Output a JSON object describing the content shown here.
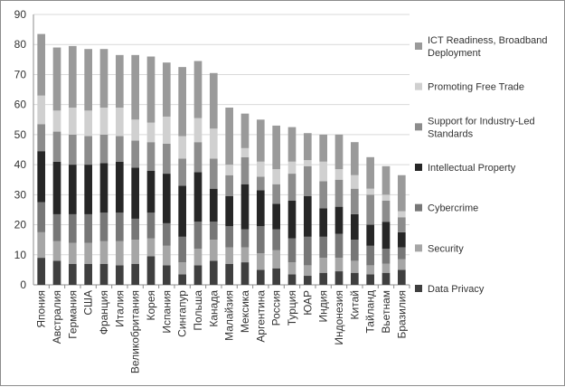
{
  "chart_data": {
    "type": "bar",
    "stacked": true,
    "title": "",
    "xlabel": "",
    "ylabel": "",
    "ylim": [
      0,
      90
    ],
    "y_ticks": [
      0,
      10,
      20,
      30,
      40,
      50,
      60,
      70,
      80,
      90
    ],
    "grid": "horizontal",
    "legend_position": "right",
    "categories": [
      "Япония",
      "Австралия",
      "Германия",
      "США",
      "Франция",
      "Италия",
      "Великобритания",
      "Корея",
      "Испания",
      "Сингапур",
      "Польша",
      "Канада",
      "Малайзия",
      "Мексика",
      "Аргентина",
      "Россия",
      "Турция",
      "ЮАР",
      "Индия",
      "Индонезия",
      "Китай",
      "Тайланд",
      "Вьетнам",
      "Бразилия"
    ],
    "series": [
      {
        "name": "Data Privacy",
        "color": "#3f3f3f",
        "values": [
          9,
          8,
          7,
          7,
          7,
          6.5,
          7,
          9.5,
          6.5,
          3.5,
          6.5,
          8,
          7,
          7.5,
          5,
          5.5,
          3.5,
          3,
          4,
          4.5,
          4,
          3.5,
          4,
          5
        ]
      },
      {
        "name": "Security",
        "color": "#a6a6a6",
        "values": [
          8.5,
          6.5,
          7,
          7,
          7.5,
          8,
          8,
          6,
          6.5,
          4,
          5.5,
          7,
          5.5,
          5,
          5.5,
          6,
          4,
          3.5,
          5,
          4.5,
          4,
          3,
          3,
          3.5
        ]
      },
      {
        "name": "Cybercrime",
        "color": "#777777",
        "values": [
          10,
          9,
          9.5,
          9.5,
          9.5,
          9.5,
          7,
          8.5,
          7.5,
          8.5,
          9,
          6,
          7,
          6,
          9,
          7,
          8,
          9.5,
          7,
          8,
          7,
          6.5,
          5,
          4
        ]
      },
      {
        "name": "Intellectual Property",
        "color": "#262626",
        "values": [
          17,
          17.5,
          16.5,
          16.5,
          16.5,
          17,
          17,
          14,
          16.5,
          17,
          16.5,
          11,
          10,
          15,
          12,
          8.5,
          12.5,
          13.5,
          9.5,
          9,
          8.5,
          7,
          9,
          5
        ]
      },
      {
        "name": "Support for Industry-Led Standards",
        "color": "#8c8c8c",
        "values": [
          9,
          10,
          10,
          9.5,
          9.5,
          8.5,
          9,
          9.5,
          10,
          9,
          10,
          10,
          7,
          9,
          4.5,
          6.5,
          9,
          10,
          9,
          9,
          8.5,
          10,
          7,
          5
        ]
      },
      {
        "name": "Promoting Free Trade",
        "color": "#d0d0d0",
        "values": [
          9.5,
          7,
          9,
          8.5,
          9,
          9.5,
          7,
          6.5,
          9,
          7.5,
          8,
          10,
          3.5,
          3,
          5,
          5,
          4,
          2,
          6.5,
          3.5,
          4.5,
          2,
          2,
          2
        ]
      },
      {
        "name": "ICT Readiness, Broadband Deployment",
        "color": "#9a9a9a",
        "values": [
          20.5,
          21,
          20.5,
          20.5,
          19.5,
          17.5,
          21.5,
          22,
          18,
          23,
          19,
          18.5,
          19,
          11.5,
          14,
          14.5,
          11.5,
          9,
          9,
          11.5,
          11,
          10.5,
          9.5,
          12
        ]
      }
    ]
  }
}
